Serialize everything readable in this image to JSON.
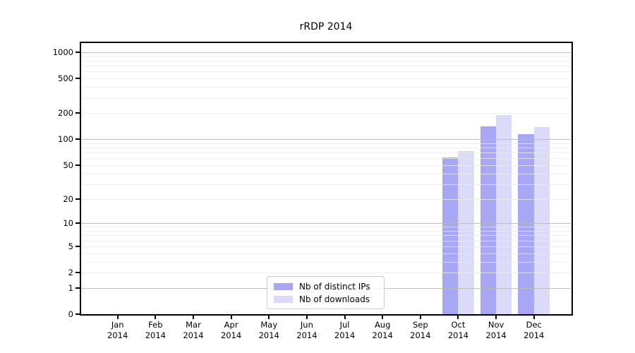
{
  "figure": {
    "background": "#ffffff"
  },
  "chart_data": {
    "type": "bar",
    "title": "rRDP 2014",
    "categories": [
      "Jan",
      "Feb",
      "Mar",
      "Apr",
      "May",
      "Jun",
      "Jul",
      "Aug",
      "Sep",
      "Oct",
      "Nov",
      "Dec"
    ],
    "category_year": "2014",
    "series": [
      {
        "name": "Nb of distinct IPs",
        "color": "#a7a7f4",
        "values": [
          0,
          0,
          0,
          0,
          0,
          0,
          0,
          0,
          0,
          62,
          140,
          115
        ]
      },
      {
        "name": "Nb of downloads",
        "color": "#dbdbf9",
        "values": [
          0,
          0,
          0,
          0,
          0,
          0,
          0,
          0,
          0,
          73,
          190,
          138
        ]
      }
    ],
    "xlabel": "",
    "ylabel": "",
    "y_scale": "log1p",
    "ylim": [
      0,
      1300
    ],
    "y_ticks": [
      0,
      1,
      2,
      5,
      10,
      20,
      50,
      100,
      200,
      500,
      1000
    ],
    "grid": {
      "major_lines": [
        1,
        10,
        100,
        1000
      ],
      "minor_lines": [
        2,
        3,
        4,
        5,
        6,
        7,
        8,
        9,
        20,
        30,
        40,
        50,
        60,
        70,
        80,
        90,
        200,
        300,
        400,
        500,
        600,
        700,
        800,
        900
      ],
      "major_color": "#c0c0c0",
      "minor_color": "#ebebeb"
    },
    "legend": {
      "position": "lower center",
      "entries": [
        "Nb of distinct IPs",
        "Nb of downloads"
      ]
    }
  }
}
